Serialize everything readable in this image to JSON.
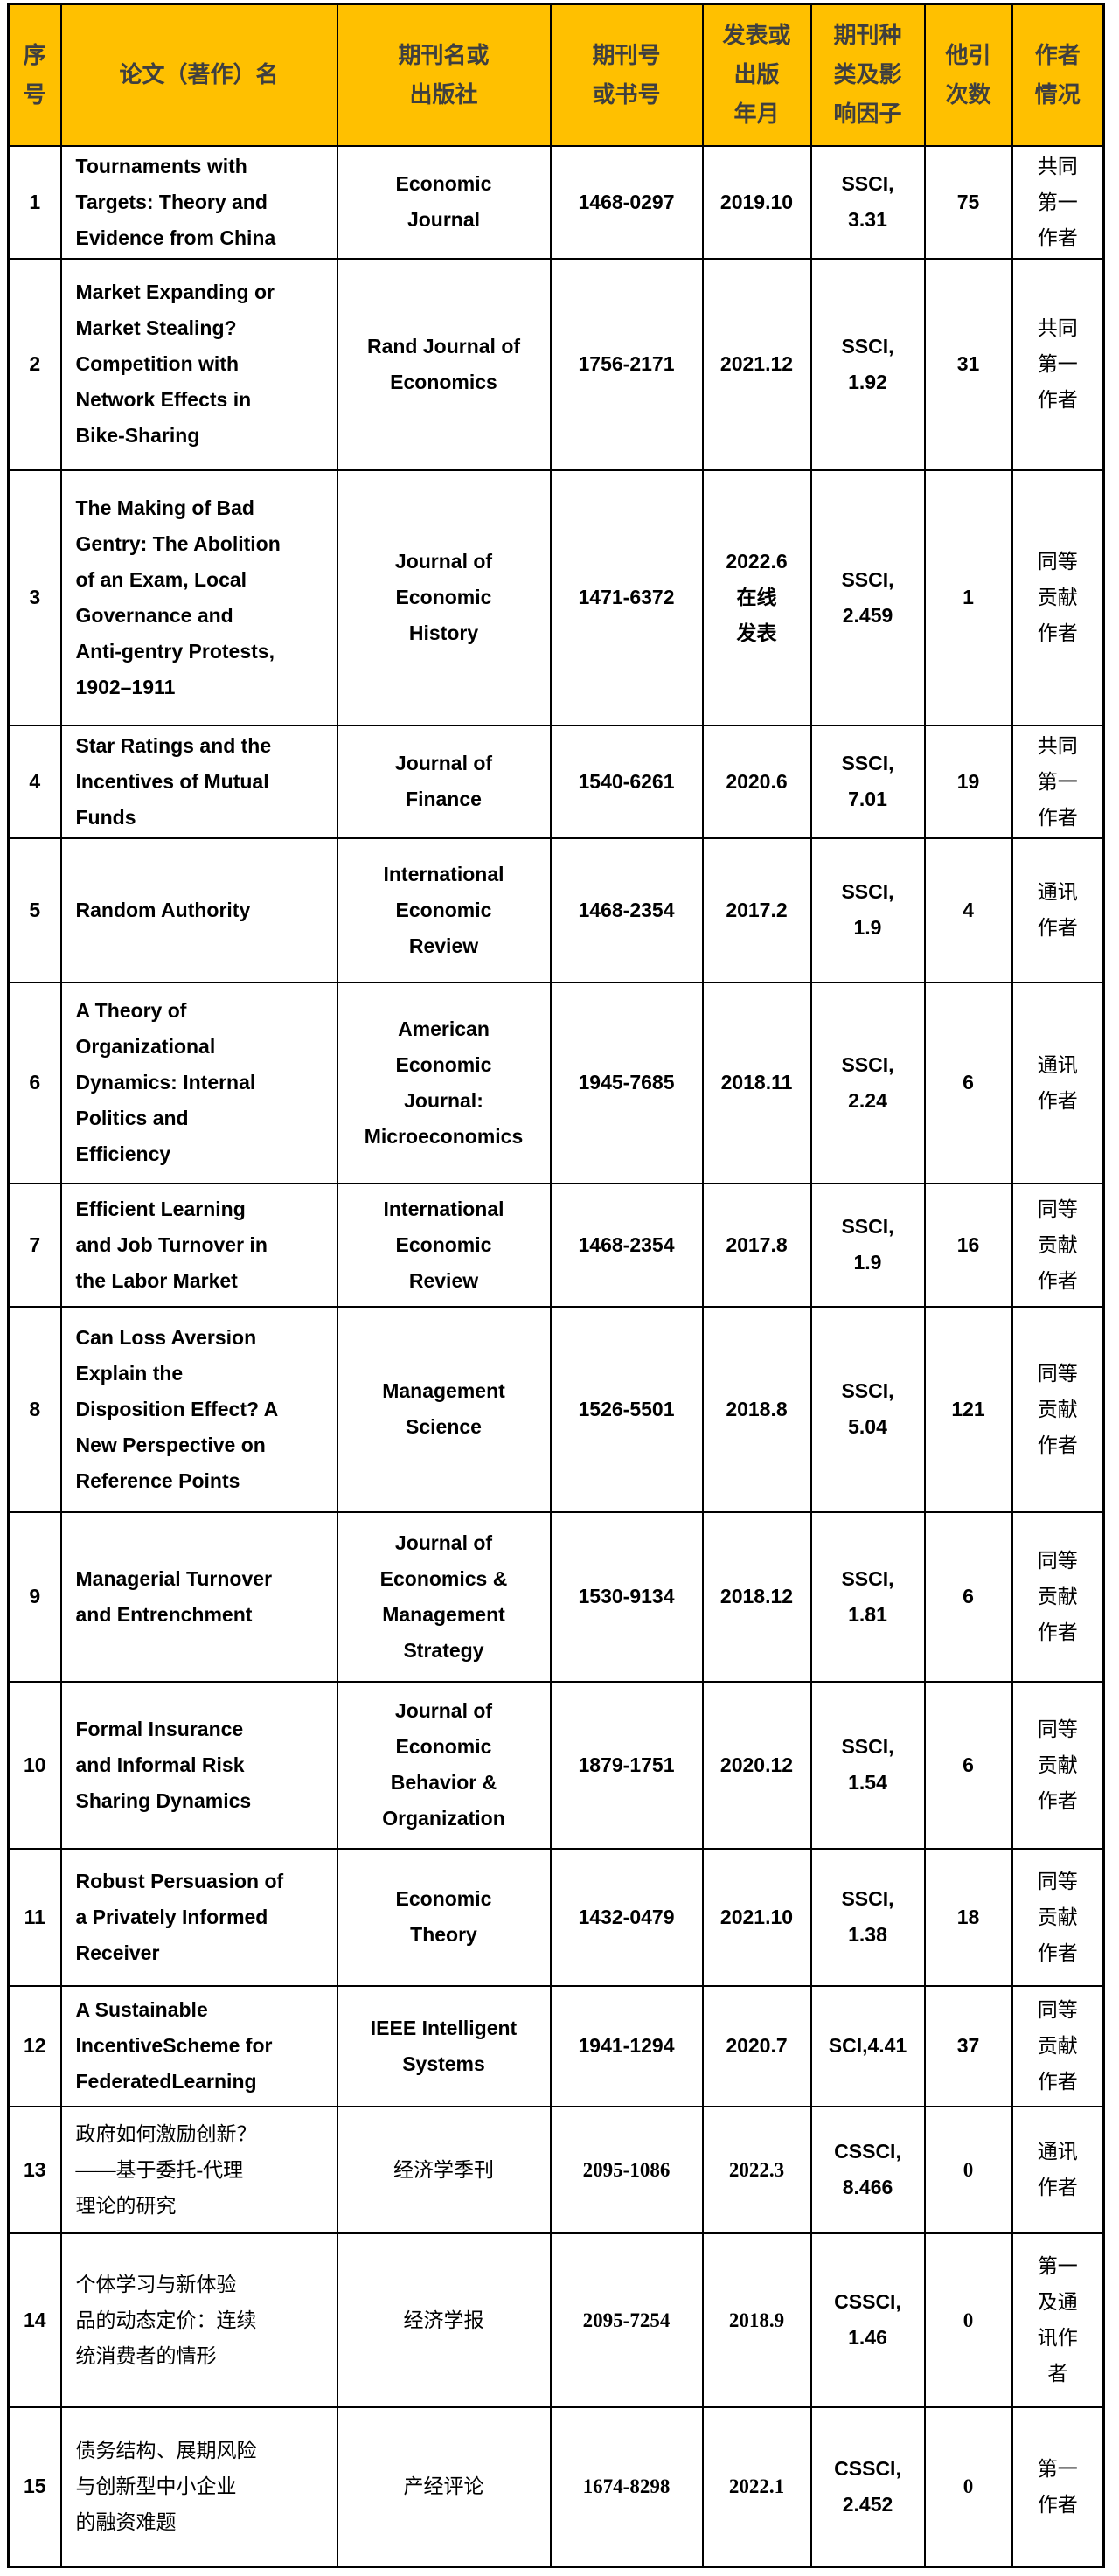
{
  "colors": {
    "header_bg": "#FFC000",
    "header_text": "#3F3F3F",
    "border": "#000000",
    "body_text": "#000000"
  },
  "table": {
    "columns": [
      {
        "key": "index",
        "label": "序\n号"
      },
      {
        "key": "title",
        "label": "论文（著作）名"
      },
      {
        "key": "journal",
        "label": "期刊名或\n出版社"
      },
      {
        "key": "issn",
        "label": "期刊号\n或书号"
      },
      {
        "key": "date",
        "label": "发表或\n出版\n年月"
      },
      {
        "key": "category",
        "label": "期刊种\n类及影\n响因子"
      },
      {
        "key": "citations",
        "label": "他引\n次数"
      },
      {
        "key": "author",
        "label": "作者\n情况"
      }
    ],
    "rows": [
      {
        "lang": "en",
        "index": "1",
        "title": "Tournaments with\nTargets: Theory and\nEvidence from China",
        "journal": "Economic\nJournal",
        "issn": "1468-0297",
        "date": "2019.10",
        "category": "SSCI,\n3.31",
        "citations": "75",
        "author": "共同\n第一\n作者"
      },
      {
        "lang": "en",
        "index": "2",
        "title": "Market Expanding or\nMarket Stealing?\nCompetition with\nNetwork Effects in\nBike-Sharing",
        "journal": "Rand Journal of\nEconomics",
        "issn": "1756-2171",
        "date": "2021.12",
        "category": "SSCI,\n1.92",
        "citations": "31",
        "author": "共同\n第一\n作者"
      },
      {
        "lang": "en",
        "index": "3",
        "title": "The Making of Bad\nGentry: The Abolition\nof an Exam, Local\nGovernance and\nAnti-gentry Protests,\n1902–1911",
        "journal": "Journal of\nEconomic\nHistory",
        "issn": "1471-6372",
        "date": "2022.6\n在线\n发表",
        "category": "SSCI,\n2.459",
        "citations": "1",
        "author": "同等\n贡献\n作者"
      },
      {
        "lang": "en",
        "index": "4",
        "title": "Star Ratings and the\nIncentives of Mutual\nFunds",
        "journal": "Journal of\nFinance",
        "issn": "1540-6261",
        "date": "2020.6",
        "category": "SSCI,\n7.01",
        "citations": "19",
        "author": "共同\n第一\n作者"
      },
      {
        "lang": "en",
        "index": "5",
        "title": "Random Authority",
        "journal": "International\nEconomic\nReview",
        "issn": "1468-2354",
        "date": "2017.2",
        "category": "SSCI,\n1.9",
        "citations": "4",
        "author": "通讯\n作者"
      },
      {
        "lang": "en",
        "index": "6",
        "title": "A Theory of\nOrganizational\nDynamics: Internal\nPolitics and\nEfficiency",
        "journal": "American\nEconomic\nJournal:\nMicroeconomics",
        "issn": "1945-7685",
        "date": "2018.11",
        "category": "SSCI,\n2.24",
        "citations": "6",
        "author": "通讯\n作者"
      },
      {
        "lang": "en",
        "index": "7",
        "title": "Efficient Learning\nand Job Turnover in\nthe Labor Market",
        "journal": "International\nEconomic\nReview",
        "issn": "1468-2354",
        "date": "2017.8",
        "category": "SSCI,\n1.9",
        "citations": "16",
        "author": "同等\n贡献\n作者"
      },
      {
        "lang": "en",
        "index": "8",
        "title": "Can Loss Aversion\nExplain the\nDisposition Effect? A\nNew Perspective on\nReference Points",
        "journal": "Management\nScience",
        "issn": "1526-5501",
        "date": "2018.8",
        "category": "SSCI,\n5.04",
        "citations": "121",
        "author": "同等\n贡献\n作者"
      },
      {
        "lang": "en",
        "index": "9",
        "title": "Managerial Turnover\nand Entrenchment",
        "journal": "Journal of\nEconomics &\nManagement\nStrategy",
        "issn": "1530-9134",
        "date": "2018.12",
        "category": "SSCI,\n1.81",
        "citations": "6",
        "author": "同等\n贡献\n作者"
      },
      {
        "lang": "en",
        "index": "10",
        "title": "Formal Insurance\nand Informal Risk\nSharing Dynamics",
        "journal": "Journal of\nEconomic\nBehavior &\nOrganization",
        "issn": "1879-1751",
        "date": "2020.12",
        "category": "SSCI,\n1.54",
        "citations": "6",
        "author": "同等\n贡献\n作者"
      },
      {
        "lang": "en",
        "index": "11",
        "title": "Robust Persuasion of\na Privately Informed\nReceiver",
        "journal": "Economic\nTheory",
        "issn": "1432-0479",
        "date": "2021.10",
        "category": "SSCI,\n1.38",
        "citations": "18",
        "author": "同等\n贡献\n作者"
      },
      {
        "lang": "en",
        "index": "12",
        "title": "A Sustainable\nIncentiveScheme for\nFederatedLearning",
        "journal": "IEEE Intelligent\nSystems",
        "issn": "1941-1294",
        "date": "2020.7",
        "category": "SCI,4.41",
        "citations": "37",
        "author": "同等\n贡献\n作者"
      },
      {
        "lang": "zh",
        "index": "13",
        "title": "政府如何激励创新？\n——基于委托-代理\n理论的研究",
        "journal": "经济学季刊",
        "issn": "2095-1086",
        "date": "2022.3",
        "category": "CSSCI,\n8.466",
        "citations": "0",
        "author": "通讯\n作者"
      },
      {
        "lang": "zh",
        "index": "14",
        "title": "个体学习与新体验\n品的动态定价：连续\n统消费者的情形",
        "journal": "经济学报",
        "issn": "2095-7254",
        "date": "2018.9",
        "category": "CSSCI,\n1.46",
        "citations": "0",
        "author": "第一\n及通\n讯作\n者"
      },
      {
        "lang": "zh",
        "index": "15",
        "title": "债务结构、展期风险\n与创新型中小企业\n的融资难题",
        "journal": "产经评论",
        "issn": "1674-8298",
        "date": "2022.1",
        "category": "CSSCI,\n2.452",
        "citations": "0",
        "author": "第一\n作者"
      }
    ]
  }
}
